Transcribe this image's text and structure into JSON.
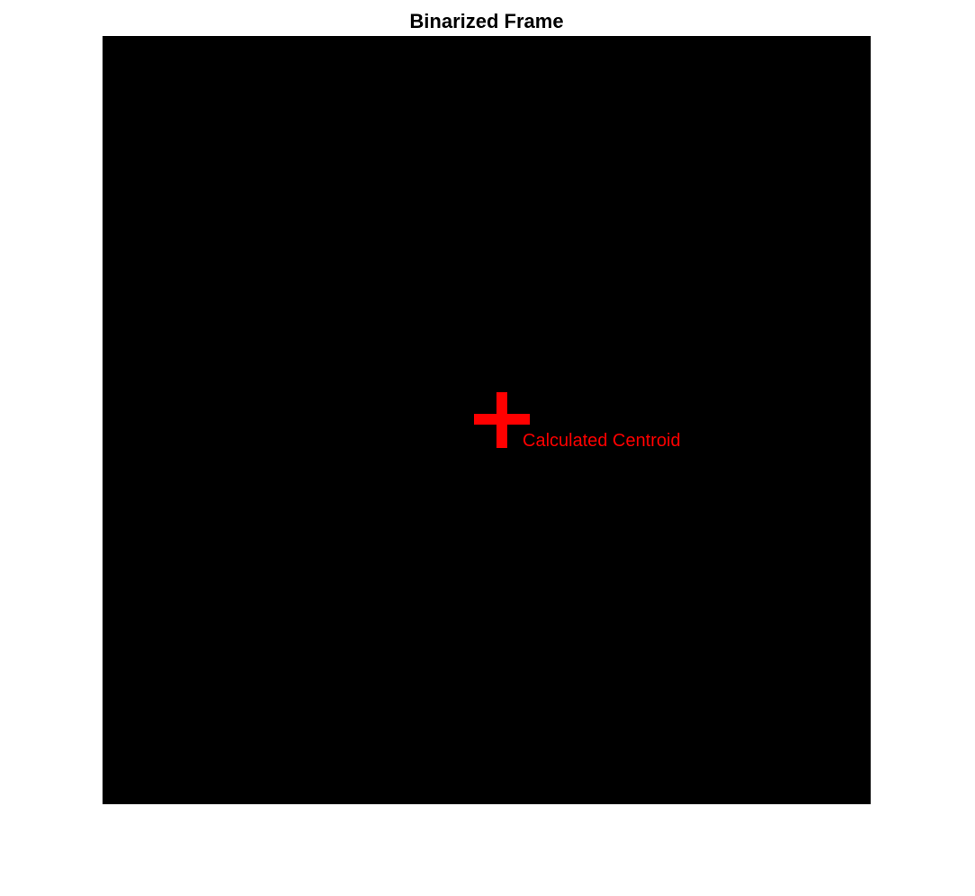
{
  "figure": {
    "title": "Binarized Frame",
    "background_color": "#ffffff"
  },
  "image": {
    "description_kind": "binary image",
    "fill_color": "#000000"
  },
  "annotation": {
    "marker_icon": "plus-marker-icon",
    "label": "Calculated Centroid",
    "color": "#ff0000"
  }
}
